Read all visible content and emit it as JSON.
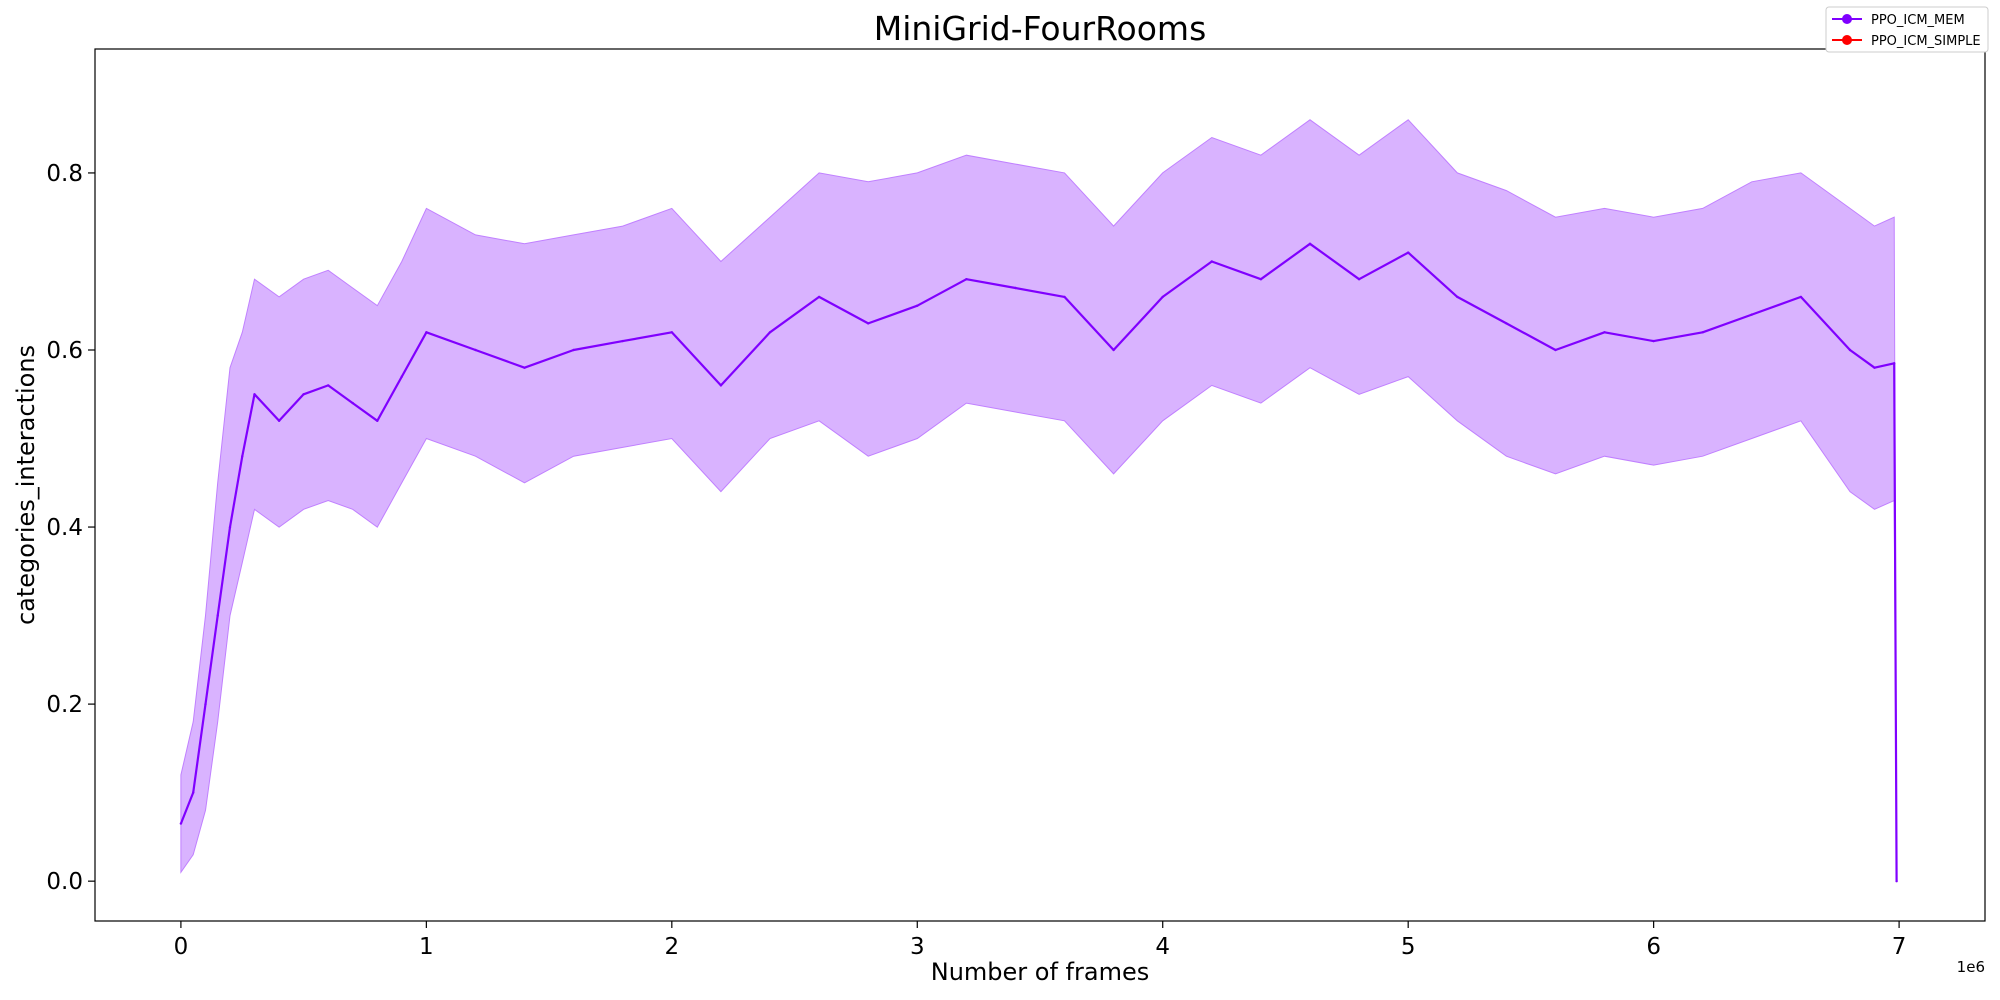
{
  "chart_data": {
    "type": "line",
    "title": "MiniGrid-FourRooms",
    "xlabel": "Number of frames",
    "ylabel": "categories_interactions",
    "x_offset_text": "1e6",
    "xlim": [
      -0.35,
      7.35
    ],
    "ylim": [
      -0.045,
      0.94
    ],
    "x_ticks": [
      0,
      1,
      2,
      3,
      4,
      5,
      6,
      7
    ],
    "x_tick_labels": [
      "0",
      "1",
      "2",
      "3",
      "4",
      "5",
      "6",
      "7"
    ],
    "y_ticks": [
      0.0,
      0.2,
      0.4,
      0.6,
      0.8
    ],
    "y_tick_labels": [
      "0.0",
      "0.2",
      "0.4",
      "0.6",
      "0.8"
    ],
    "grid": false,
    "legend_position": "top-right",
    "legend": [
      {
        "name": "PPO_ICM_MEM",
        "color": "#7f00ff"
      },
      {
        "name": "PPO_ICM_SIMPLE",
        "color": "#ff0000"
      }
    ],
    "series": [
      {
        "name": "PPO_ICM_MEM",
        "color": "#8000ff",
        "band_color": "#c080ff",
        "x": [
          0,
          0.05,
          0.1,
          0.15,
          0.2,
          0.25,
          0.3,
          0.4,
          0.5,
          0.6,
          0.7,
          0.8,
          0.9,
          1.0,
          1.2,
          1.4,
          1.6,
          1.8,
          2.0,
          2.2,
          2.4,
          2.6,
          2.8,
          3.0,
          3.2,
          3.4,
          3.6,
          3.8,
          4.0,
          4.2,
          4.4,
          4.6,
          4.8,
          5.0,
          5.2,
          5.4,
          5.6,
          5.8,
          6.0,
          6.2,
          6.4,
          6.6,
          6.8,
          6.9,
          6.98,
          6.99
        ],
        "y": [
          0.065,
          0.1,
          0.2,
          0.3,
          0.4,
          0.48,
          0.55,
          0.52,
          0.55,
          0.56,
          0.54,
          0.52,
          0.57,
          0.62,
          0.6,
          0.58,
          0.6,
          0.61,
          0.62,
          0.56,
          0.62,
          0.66,
          0.63,
          0.65,
          0.68,
          0.67,
          0.66,
          0.6,
          0.66,
          0.7,
          0.68,
          0.72,
          0.68,
          0.71,
          0.66,
          0.63,
          0.6,
          0.62,
          0.61,
          0.62,
          0.64,
          0.66,
          0.6,
          0.58,
          0.585,
          0.0
        ],
        "lower": [
          0.01,
          0.03,
          0.08,
          0.18,
          0.3,
          0.36,
          0.42,
          0.4,
          0.42,
          0.43,
          0.42,
          0.4,
          0.45,
          0.5,
          0.48,
          0.45,
          0.48,
          0.49,
          0.5,
          0.44,
          0.5,
          0.52,
          0.48,
          0.5,
          0.54,
          0.53,
          0.52,
          0.46,
          0.52,
          0.56,
          0.54,
          0.58,
          0.55,
          0.57,
          0.52,
          0.48,
          0.46,
          0.48,
          0.47,
          0.48,
          0.5,
          0.52,
          0.44,
          0.42,
          0.43,
          0.0
        ],
        "upper": [
          0.12,
          0.18,
          0.3,
          0.45,
          0.58,
          0.62,
          0.68,
          0.66,
          0.68,
          0.69,
          0.67,
          0.65,
          0.7,
          0.76,
          0.73,
          0.72,
          0.73,
          0.74,
          0.76,
          0.7,
          0.75,
          0.8,
          0.79,
          0.8,
          0.82,
          0.81,
          0.8,
          0.74,
          0.8,
          0.84,
          0.82,
          0.86,
          0.82,
          0.86,
          0.8,
          0.78,
          0.75,
          0.76,
          0.75,
          0.76,
          0.79,
          0.8,
          0.76,
          0.74,
          0.75,
          0.0
        ]
      }
    ]
  }
}
